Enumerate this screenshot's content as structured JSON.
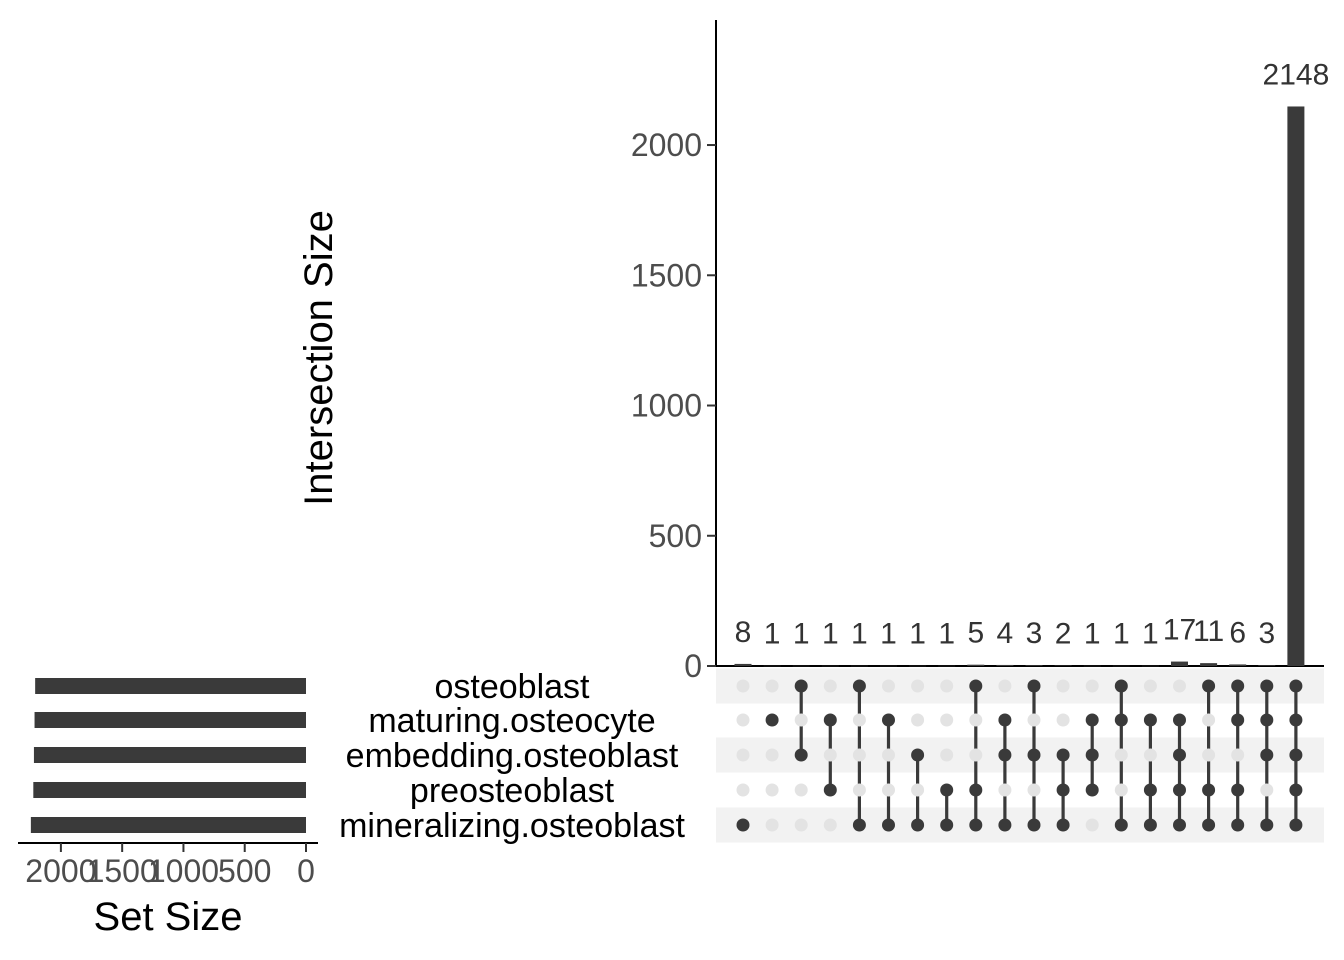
{
  "chart_data": {
    "type": "bar",
    "variant": "upset",
    "ylabel": "Intersection Size",
    "set_size_label": "Set Size",
    "y_ticks": [
      "0",
      "500",
      "1000",
      "1500",
      "2000"
    ],
    "y_tick_values": [
      0,
      500,
      1000,
      1500,
      2000
    ],
    "ylim": [
      0,
      2480
    ],
    "set_size_ticks": [
      "2000",
      "1500",
      "1000",
      "500",
      "0"
    ],
    "set_size_tick_values": [
      2000,
      1500,
      1000,
      500,
      0
    ],
    "set_size_max": 2350,
    "bar_color": "#3a3a3a",
    "dot_inactive_color": "#e3e3e3",
    "stripe_color": "#f2f2f2",
    "sets": [
      {
        "name": "osteoblast",
        "size": 2210
      },
      {
        "name": "maturing.osteocyte",
        "size": 2215
      },
      {
        "name": "embedding.osteoblast",
        "size": 2220
      },
      {
        "name": "preosteoblast",
        "size": 2225
      },
      {
        "name": "mineralizing.osteoblast",
        "size": 2245
      }
    ],
    "intersections": [
      {
        "label": "8",
        "value": 8,
        "members": [
          4
        ]
      },
      {
        "label": "1",
        "value": 1,
        "members": [
          1
        ]
      },
      {
        "label": "1",
        "value": 1,
        "members": [
          0,
          2
        ]
      },
      {
        "label": "1",
        "value": 1,
        "members": [
          1,
          3
        ]
      },
      {
        "label": "1",
        "value": 1,
        "members": [
          0,
          4
        ]
      },
      {
        "label": "1",
        "value": 1,
        "members": [
          1,
          4
        ]
      },
      {
        "label": "1",
        "value": 1,
        "members": [
          2,
          4
        ]
      },
      {
        "label": "1",
        "value": 1,
        "members": [
          3,
          4
        ]
      },
      {
        "label": "5",
        "value": 5,
        "members": [
          0,
          3,
          4
        ]
      },
      {
        "label": "4",
        "value": 4,
        "members": [
          1,
          2,
          4
        ]
      },
      {
        "label": "3",
        "value": 3,
        "members": [
          0,
          2,
          4
        ]
      },
      {
        "label": "2",
        "value": 2,
        "members": [
          2,
          3,
          4
        ]
      },
      {
        "label": "1",
        "value": 1,
        "members": [
          1,
          2,
          3
        ]
      },
      {
        "label": "1",
        "value": 1,
        "members": [
          0,
          1,
          4
        ]
      },
      {
        "label": "1",
        "value": 1,
        "members": [
          1,
          3,
          4
        ]
      },
      {
        "label": "17",
        "value": 17,
        "members": [
          1,
          2,
          3,
          4
        ]
      },
      {
        "label": "11",
        "value": 11,
        "members": [
          0,
          3,
          4
        ]
      },
      {
        "label": "6",
        "value": 6,
        "members": [
          0,
          1,
          3,
          4
        ]
      },
      {
        "label": "3",
        "value": 3,
        "members": [
          0,
          1,
          2,
          4
        ]
      },
      {
        "label": "2148",
        "value": 2148,
        "members": [
          0,
          1,
          2,
          3,
          4
        ]
      }
    ]
  }
}
